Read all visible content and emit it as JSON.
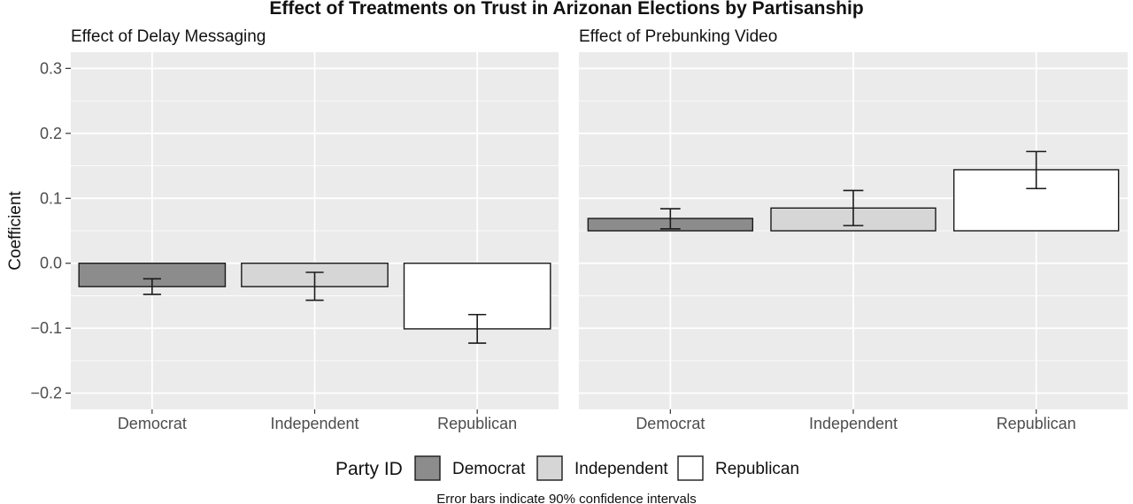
{
  "chart_data": {
    "type": "bar",
    "title": "Effect of Treatments on Trust in Arizonan Elections by Partisanship",
    "ylabel": "Coefficient",
    "ylim": [
      -0.225,
      0.325
    ],
    "y_ticks": [
      -0.2,
      -0.1,
      0.0,
      0.1,
      0.2,
      0.3
    ],
    "y_tick_labels": [
      "−0.2",
      "−0.1",
      "0.0",
      "0.1",
      "0.2",
      "0.3"
    ],
    "categories": [
      "Democrat",
      "Independent",
      "Republican"
    ],
    "colors": {
      "Democrat": "#8c8c8c",
      "Independent": "#d6d6d6",
      "Republican": "#ffffff"
    },
    "grid": true,
    "panels": [
      {
        "title": "Effect of Delay Messaging",
        "base": 0.0,
        "series": [
          {
            "name": "Democrat",
            "value": -0.036,
            "ci": [
              -0.048,
              -0.024
            ]
          },
          {
            "name": "Independent",
            "value": -0.036,
            "ci": [
              -0.057,
              -0.014
            ]
          },
          {
            "name": "Republican",
            "value": -0.101,
            "ci": [
              -0.123,
              -0.079
            ]
          }
        ]
      },
      {
        "title": "Effect of Prebunking Video",
        "base": 0.05,
        "series": [
          {
            "name": "Democrat",
            "value": 0.069,
            "ci": [
              0.053,
              0.084
            ]
          },
          {
            "name": "Independent",
            "value": 0.085,
            "ci": [
              0.058,
              0.112
            ]
          },
          {
            "name": "Republican",
            "value": 0.144,
            "ci": [
              0.115,
              0.172
            ]
          }
        ]
      }
    ],
    "legend": {
      "title": "Party ID",
      "position": "bottom",
      "entries": [
        "Democrat",
        "Independent",
        "Republican"
      ]
    },
    "caption": "Error bars indicate 90% confidence intervals"
  }
}
